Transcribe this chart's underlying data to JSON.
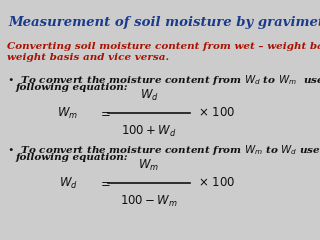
{
  "title": "Measurement of soil moisture by gravimetric method",
  "title_color": "#1a3a8c",
  "subtitle_line1": "Converting soil moisture content from wet – weight basis to oven dry-",
  "subtitle_line2": "weight basis and vice versa.",
  "subtitle_color": "#aa1100",
  "bg_color": "#cccccc",
  "text_color": "#111111",
  "eq_color": "#111111",
  "font_size_title": 9.5,
  "font_size_body": 7.5,
  "font_size_eq": 8.5
}
